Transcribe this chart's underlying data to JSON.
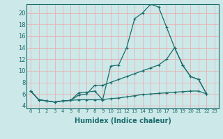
{
  "background_color": "#cde8e8",
  "grid_color_h": "#e8b0b0",
  "grid_color_v": "#e8b0b0",
  "line_color": "#1a6b6b",
  "xlabel": "Humidex (Indice chaleur)",
  "xlim": [
    -0.5,
    23.5
  ],
  "ylim": [
    3.5,
    21.5
  ],
  "yticks": [
    4,
    6,
    8,
    10,
    12,
    14,
    16,
    18,
    20
  ],
  "xticks": [
    0,
    1,
    2,
    3,
    4,
    5,
    6,
    7,
    8,
    9,
    10,
    11,
    12,
    13,
    14,
    15,
    16,
    17,
    18,
    19,
    20,
    21,
    22,
    23
  ],
  "line1_y": [
    6.5,
    5.0,
    4.8,
    4.6,
    4.8,
    4.9,
    6.2,
    6.3,
    6.5,
    5.0,
    10.8,
    11.0,
    14.0,
    19.0,
    20.0,
    21.5,
    21.0,
    17.5,
    14.0,
    11.0,
    9.0,
    8.5,
    6.0,
    null
  ],
  "line2_y": [
    6.5,
    5.0,
    4.8,
    4.6,
    4.8,
    4.9,
    5.8,
    6.0,
    7.5,
    7.5,
    8.0,
    8.5,
    9.0,
    9.5,
    10.0,
    10.5,
    11.0,
    12.0,
    14.0,
    11.0,
    9.0,
    8.5,
    6.0,
    null
  ],
  "line3_y": [
    6.5,
    5.0,
    4.8,
    4.6,
    4.8,
    4.9,
    5.0,
    5.0,
    5.0,
    5.0,
    5.2,
    5.3,
    5.5,
    5.7,
    5.9,
    6.0,
    6.1,
    6.2,
    6.3,
    6.4,
    6.5,
    6.5,
    6.0,
    null
  ]
}
